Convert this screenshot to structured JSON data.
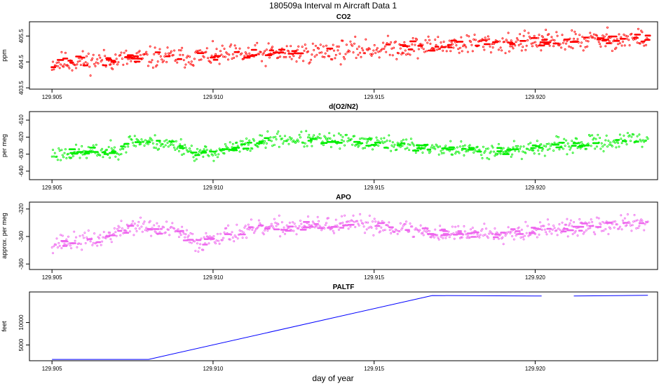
{
  "figure_title": "180509a   Interval m Aircraft Data 1",
  "xlabel": "day of year",
  "chart_data": [
    {
      "type": "scatter",
      "title": "CO2",
      "ylabel": "ppm",
      "color": "#ff0000",
      "xlim": [
        129.9043,
        129.9238
      ],
      "ylim": [
        403.45,
        406.05
      ],
      "xticks": [
        129.905,
        129.91,
        129.915,
        129.92
      ],
      "xtick_labels": [
        "129.905",
        "129.910",
        "129.915",
        "129.920"
      ],
      "yticks": [
        403.5,
        404.5,
        405.5
      ],
      "ytick_labels": [
        "403.5",
        "404.5",
        "405.5"
      ],
      "trend": [
        [
          129.905,
          404.45
        ],
        [
          129.908,
          404.65
        ],
        [
          129.912,
          404.8
        ],
        [
          129.915,
          405.0
        ],
        [
          129.918,
          405.2
        ],
        [
          129.9235,
          405.4
        ]
      ],
      "noise": 0.45,
      "seed": 11
    },
    {
      "type": "scatter",
      "title": "d(O2/N2)",
      "ylabel": "per meg",
      "color": "#00ee00",
      "xlim": [
        129.9043,
        129.9238
      ],
      "ylim": [
        -645,
        -605
      ],
      "xticks": [
        129.905,
        129.91,
        129.915,
        129.92
      ],
      "xtick_labels": [
        "129.905",
        "129.910",
        "129.915",
        "129.920"
      ],
      "yticks": [
        -640,
        -630,
        -620,
        -610
      ],
      "ytick_labels": [
        "-640",
        "-630",
        "-620",
        "-610"
      ],
      "trend": [
        [
          129.905,
          -630
        ],
        [
          129.907,
          -628
        ],
        [
          129.9075,
          -622
        ],
        [
          129.909,
          -625
        ],
        [
          129.9095,
          -630
        ],
        [
          129.91,
          -629
        ],
        [
          129.912,
          -621
        ],
        [
          129.915,
          -623
        ],
        [
          129.917,
          -627
        ],
        [
          129.919,
          -628
        ],
        [
          129.9235,
          -621
        ]
      ],
      "noise": 5,
      "seed": 23
    },
    {
      "type": "scatter",
      "title": "APO",
      "ylabel": "approx. per meg",
      "color": "#ee66ee",
      "xlim": [
        129.9043,
        129.9238
      ],
      "ylim": [
        -364,
        -315
      ],
      "xticks": [
        129.905,
        129.91,
        129.915,
        129.92
      ],
      "xtick_labels": [
        "129.905",
        "129.910",
        "129.915",
        "129.920"
      ],
      "yticks": [
        -360,
        -340,
        -320
      ],
      "ytick_labels": [
        "-360",
        "-340",
        "-320"
      ],
      "trend": [
        [
          129.905,
          -345
        ],
        [
          129.9065,
          -342
        ],
        [
          129.9075,
          -332
        ],
        [
          129.909,
          -337
        ],
        [
          129.9095,
          -346
        ],
        [
          129.91,
          -340
        ],
        [
          129.912,
          -333
        ],
        [
          129.915,
          -331
        ],
        [
          129.917,
          -338
        ],
        [
          129.919,
          -337
        ],
        [
          129.9235,
          -330
        ]
      ],
      "noise": 7,
      "seed": 37
    },
    {
      "type": "line",
      "title": "PALTF",
      "ylabel": "feet",
      "color": "#0000ff",
      "xlim": [
        129.9043,
        129.9238
      ],
      "ylim": [
        1500,
        16800
      ],
      "xticks": [
        129.905,
        129.91,
        129.915,
        129.92
      ],
      "xtick_labels": [
        "129.905",
        "129.910",
        "129.915",
        "129.920"
      ],
      "yticks": [
        5000,
        10000
      ],
      "ytick_labels": [
        "5000",
        "10000"
      ],
      "segments": [
        [
          [
            129.905,
            1800
          ],
          [
            129.908,
            1800
          ],
          [
            129.9168,
            16000
          ],
          [
            129.9202,
            15900
          ]
        ],
        [
          [
            129.9212,
            15900
          ],
          [
            129.9235,
            16050
          ]
        ]
      ]
    }
  ]
}
